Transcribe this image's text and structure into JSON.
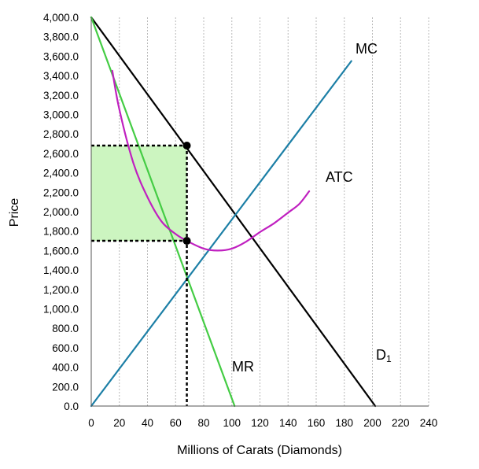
{
  "chart_data": {
    "type": "line",
    "title": "",
    "xlabel": "Millions of Carats (Diamonds)",
    "ylabel": "Price",
    "xlim": [
      0,
      240
    ],
    "ylim": [
      0,
      4000
    ],
    "x_ticks": [
      "0",
      "20",
      "40",
      "60",
      "80",
      "100",
      "120",
      "140",
      "160",
      "180",
      "200",
      "220",
      "240"
    ],
    "y_ticks": [
      "0.0",
      "200.0",
      "400.0",
      "600.0",
      "800.0",
      "1,000.0",
      "1,200.0",
      "1,400.0",
      "1,600.0",
      "1,800.0",
      "2,000.0",
      "2,200.0",
      "2,400.0",
      "2,600.0",
      "2,800.0",
      "3,000.0",
      "3,200.0",
      "3,400.0",
      "3,600.0",
      "3,800.0",
      "4,000.0"
    ],
    "grid": {
      "vertical": true,
      "horizontal": false
    },
    "series": [
      {
        "name": "D1",
        "color": "#000000",
        "points": [
          [
            0,
            4000
          ],
          [
            202,
            0
          ]
        ]
      },
      {
        "name": "MR",
        "color": "#44cc44",
        "points": [
          [
            0,
            4000
          ],
          [
            102,
            0
          ]
        ]
      },
      {
        "name": "MC",
        "color": "#1c7fa6",
        "points": [
          [
            0,
            0
          ],
          [
            185,
            3550
          ]
        ]
      },
      {
        "name": "ATC",
        "color": "#c020c0",
        "points": [
          [
            15,
            3450
          ],
          [
            20,
            3050
          ],
          [
            30,
            2500
          ],
          [
            40,
            2150
          ],
          [
            50,
            1900
          ],
          [
            60,
            1770
          ],
          [
            68,
            1700
          ],
          [
            80,
            1620
          ],
          [
            90,
            1600
          ],
          [
            100,
            1620
          ],
          [
            110,
            1690
          ],
          [
            120,
            1790
          ],
          [
            130,
            1880
          ],
          [
            140,
            1990
          ],
          [
            148,
            2080
          ],
          [
            155,
            2210
          ]
        ]
      }
    ],
    "labels": {
      "mc": "MC",
      "atc": "ATC",
      "mr": "MR",
      "d_main": "D",
      "d_sub": "1"
    },
    "profit_area": {
      "x": [
        0,
        68
      ],
      "y": [
        1700,
        2680
      ],
      "color": "#ccf5c0"
    },
    "markers": [
      {
        "x": 68,
        "y": 2680
      },
      {
        "x": 68,
        "y": 1700
      }
    ],
    "dashed_lines": [
      {
        "from": [
          0,
          2680
        ],
        "to": [
          68,
          2680
        ]
      },
      {
        "from": [
          0,
          1700
        ],
        "to": [
          68,
          1700
        ]
      },
      {
        "from": [
          68,
          2680
        ],
        "to": [
          68,
          0
        ]
      }
    ]
  }
}
